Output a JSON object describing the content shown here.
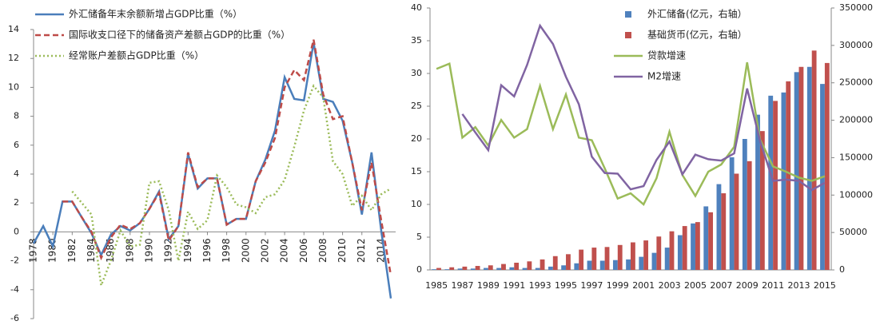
{
  "chart_data": [
    {
      "type": "line",
      "x": [
        1978,
        1979,
        1980,
        1981,
        1982,
        1983,
        1984,
        1985,
        1986,
        1987,
        1988,
        1989,
        1990,
        1991,
        1992,
        1993,
        1994,
        1995,
        1996,
        1997,
        1998,
        1999,
        2000,
        2001,
        2002,
        2003,
        2004,
        2005,
        2006,
        2007,
        2008,
        2009,
        2010,
        2011,
        2012,
        2013,
        2014,
        2015
      ],
      "xlim": [
        1978,
        2015
      ],
      "xticks": [
        1978,
        1980,
        1982,
        1984,
        1986,
        1988,
        1990,
        1992,
        1994,
        1996,
        1998,
        2000,
        2002,
        2004,
        2006,
        2008,
        2010,
        2012,
        2014
      ],
      "ylim": [
        -6,
        14
      ],
      "yticks": [
        -6,
        -4,
        -2,
        0,
        2,
        4,
        6,
        8,
        10,
        12,
        14
      ],
      "series": [
        {
          "name": "外汇储备年末余额新增占GDP比重（%）",
          "color": "#4a7ebb",
          "dash": "solid",
          "values": [
            -0.8,
            0.4,
            -1.0,
            2.1,
            2.1,
            1.0,
            -0.1,
            -1.6,
            -0.2,
            0.4,
            0.1,
            0.6,
            1.6,
            2.8,
            -0.5,
            0.4,
            5.4,
            3.0,
            3.7,
            3.7,
            0.5,
            0.9,
            0.9,
            3.5,
            5.0,
            7.0,
            10.7,
            9.2,
            9.1,
            13.1,
            9.2,
            9.0,
            7.7,
            4.8,
            1.2,
            5.5,
            0.1,
            -4.6
          ]
        },
        {
          "name": "国际收支口径下的储备资产差额占GDP的比重（%）",
          "color": "#be4b48",
          "dash": "dashed",
          "values": [
            null,
            null,
            null,
            2.1,
            2.1,
            1.0,
            0.0,
            -1.8,
            -0.4,
            0.5,
            0.2,
            0.6,
            1.6,
            2.7,
            -0.6,
            0.4,
            5.5,
            3.1,
            3.7,
            3.7,
            0.5,
            0.9,
            0.9,
            3.5,
            4.8,
            6.5,
            10.0,
            11.2,
            10.5,
            13.3,
            9.5,
            7.8,
            8.0,
            4.8,
            1.5,
            4.8,
            0.8,
            -3.0
          ]
        },
        {
          "name": "经常账户差额占GDP比重（%）",
          "color": "#9bbb59",
          "dash": "dotted",
          "values": [
            null,
            null,
            null,
            null,
            2.8,
            2.0,
            1.2,
            -3.7,
            -2.0,
            0.1,
            -1.0,
            -0.9,
            3.4,
            3.5,
            1.5,
            -2.0,
            1.4,
            0.2,
            0.8,
            3.9,
            3.1,
            1.9,
            1.7,
            1.3,
            2.4,
            2.6,
            3.6,
            5.9,
            8.4,
            10.1,
            9.3,
            4.9,
            4.0,
            1.8,
            2.5,
            1.5,
            2.6,
            3.0
          ]
        }
      ]
    },
    {
      "type": "combo",
      "categories": [
        "1985",
        null,
        "1987",
        null,
        "1989",
        null,
        "1991",
        null,
        "1993",
        null,
        "1995",
        null,
        "1997",
        null,
        "1999",
        null,
        "2001",
        null,
        "2003",
        null,
        "2005",
        null,
        "2007",
        null,
        "2009",
        null,
        "2011",
        null,
        "2013",
        null,
        "2015"
      ],
      "ylim": [
        0,
        40
      ],
      "yticks": [
        0,
        5,
        10,
        15,
        20,
        25,
        30,
        35,
        40
      ],
      "y2lim": [
        0,
        350000
      ],
      "y2ticks": [
        0,
        50000,
        100000,
        150000,
        200000,
        250000,
        300000,
        350000
      ],
      "series": [
        {
          "name": "外汇储备(亿元，右轴）",
          "type": "bar",
          "axis": "y2",
          "color": "#4f81bd",
          "values": [
            900,
            900,
            1800,
            1800,
            2600,
            2600,
            3500,
            2600,
            2600,
            4400,
            6100,
            8800,
            12300,
            12300,
            13100,
            14000,
            17500,
            22800,
            29800,
            46400,
            62100,
            84900,
            114600,
            150500,
            175000,
            207400,
            232800,
            237100,
            264300,
            271300,
            248500
          ]
        },
        {
          "name": "基础货币(亿元，右轴）",
          "type": "bar",
          "axis": "y2",
          "color": "#c0504d",
          "values": [
            2600,
            3500,
            4400,
            5300,
            6100,
            7900,
            9600,
            11400,
            14000,
            18400,
            21000,
            27100,
            29800,
            30600,
            33300,
            36800,
            39400,
            44600,
            51600,
            58600,
            63900,
            77000,
            102400,
            128600,
            145300,
            185500,
            225800,
            252000,
            271300,
            293100,
            276500
          ]
        },
        {
          "name": "贷款增速",
          "type": "line",
          "color": "#9bbb59",
          "values": [
            30.7,
            31.5,
            20.2,
            21.8,
            19.0,
            22.9,
            20.2,
            21.5,
            28.1,
            21.5,
            26.8,
            20.2,
            19.8,
            15.5,
            10.9,
            11.7,
            10.0,
            14.0,
            21.1,
            14.5,
            11.3,
            15.0,
            16.1,
            18.8,
            31.7,
            19.9,
            15.8,
            15.0,
            14.1,
            13.6,
            14.3
          ]
        },
        {
          "name": "M2增速",
          "type": "line",
          "color": "#8064a2",
          "values": [
            null,
            null,
            23.8,
            21.0,
            18.3,
            28.2,
            26.5,
            31.3,
            37.3,
            34.5,
            29.5,
            25.3,
            17.3,
            14.8,
            14.7,
            12.3,
            12.8,
            16.8,
            19.6,
            14.6,
            17.6,
            16.9,
            16.7,
            17.8,
            27.7,
            19.7,
            13.6,
            13.8,
            13.6,
            12.2,
            13.3
          ]
        }
      ]
    }
  ]
}
